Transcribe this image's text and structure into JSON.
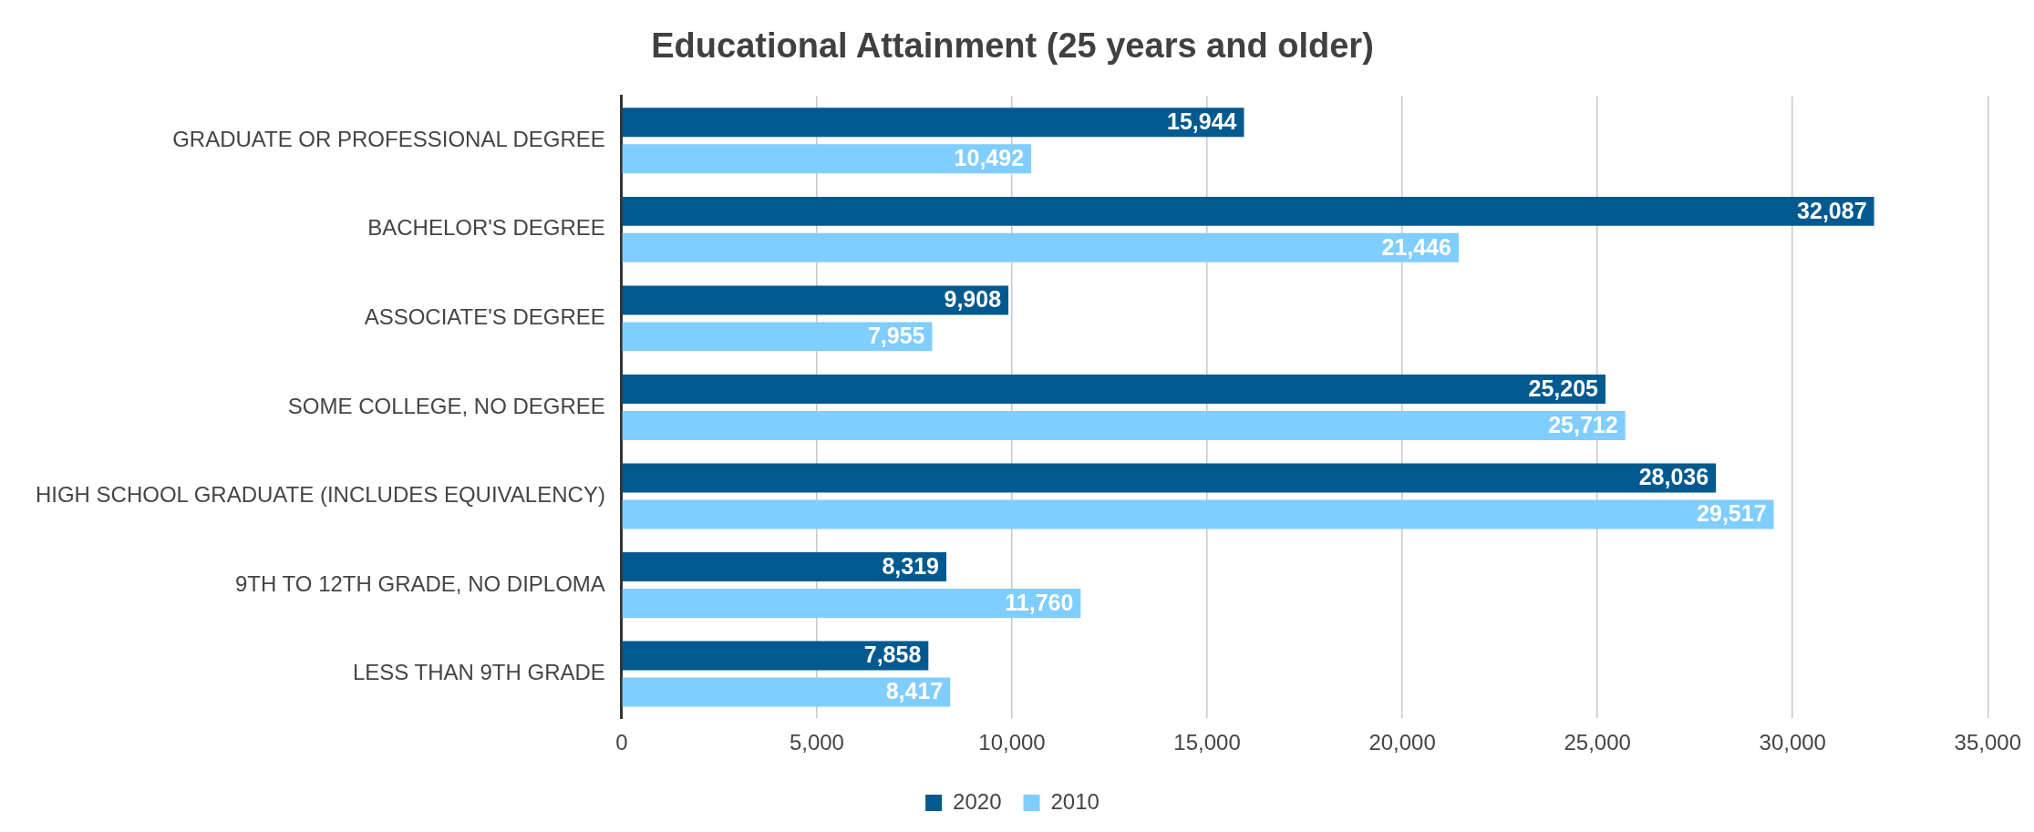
{
  "chart_data": {
    "type": "bar",
    "orientation": "horizontal",
    "title": "Educational Attainment (25 years and older)",
    "categories": [
      "GRADUATE OR PROFESSIONAL DEGREE",
      "BACHELOR'S DEGREE",
      "ASSOCIATE'S DEGREE",
      "SOME COLLEGE, NO DEGREE",
      "HIGH SCHOOL GRADUATE (INCLUDES EQUIVALENCY)",
      "9TH TO 12TH GRADE, NO DIPLOMA",
      "LESS THAN 9TH GRADE"
    ],
    "series": [
      {
        "name": "2020",
        "color": "#005a8f",
        "values": [
          15944,
          32087,
          9908,
          25205,
          28036,
          8319,
          7858
        ],
        "value_labels": [
          "15,944",
          "32,087",
          "9,908",
          "25,205",
          "28,036",
          "8,319",
          "7,858"
        ]
      },
      {
        "name": "2010",
        "color": "#80cdff",
        "values": [
          10492,
          21446,
          7955,
          25712,
          29517,
          11760,
          8417
        ],
        "value_labels": [
          "10,492",
          "21,446",
          "7,955",
          "25,712",
          "29,517",
          "11,760",
          "8,417"
        ]
      }
    ],
    "xlim": [
      0,
      35000
    ],
    "xticks": [
      {
        "value": 0,
        "label": "0"
      },
      {
        "value": 5000,
        "label": "5,000"
      },
      {
        "value": 10000,
        "label": "10,000"
      },
      {
        "value": 15000,
        "label": "15,000"
      },
      {
        "value": 20000,
        "label": "20,000"
      },
      {
        "value": 25000,
        "label": "25,000"
      },
      {
        "value": 30000,
        "label": "30,000"
      },
      {
        "value": 35000,
        "label": "35,000"
      }
    ],
    "grid": "x",
    "legend": "bottom"
  }
}
